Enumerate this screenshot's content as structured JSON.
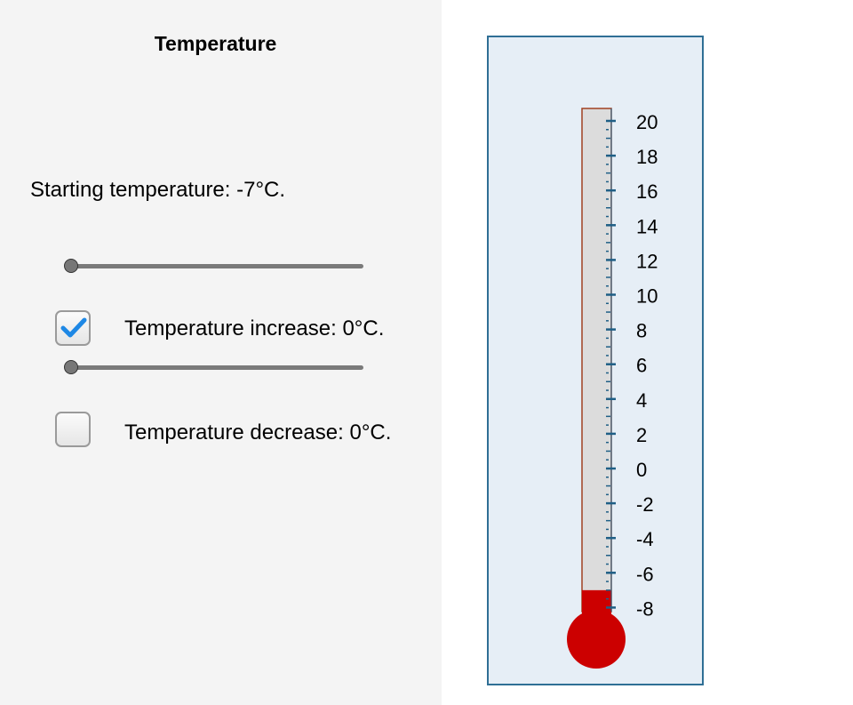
{
  "panel": {
    "title": "Temperature",
    "starting": {
      "label": "Starting temperature:  -7°C.",
      "value": -7,
      "min": -7,
      "max": 10
    },
    "increase": {
      "checked": true,
      "label": "Temperature increase:  0°C.",
      "value": 0,
      "min": 0,
      "max": 10
    },
    "decrease": {
      "checked": false,
      "label": "Temperature decrease:  0°C."
    }
  },
  "thermometer": {
    "current_value": -7,
    "scale_min": -9,
    "scale_max": 21,
    "tick_labels": [
      "20",
      "18",
      "16",
      "14",
      "12",
      "10",
      "8",
      "6",
      "4",
      "2",
      "0",
      "-2",
      "-4",
      "-6",
      "-8"
    ],
    "colors": {
      "mercury": "#cc0000",
      "tube": "#dcdcdc",
      "tube_border": "#a04020",
      "ticks": "#1f5f86",
      "frame_bg": "#e6eef6",
      "frame_border": "#2f6f95"
    }
  }
}
